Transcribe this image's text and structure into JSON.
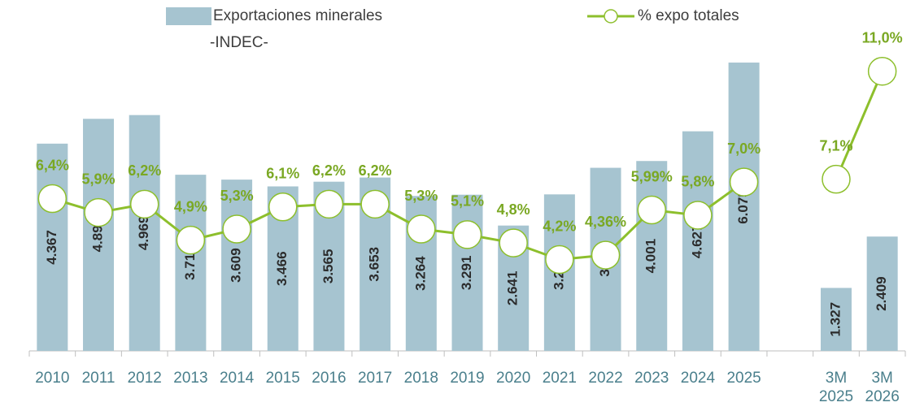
{
  "chart_data": {
    "type": "bar",
    "subtitle": "-INDEC-",
    "categories": [
      "2010",
      "2011",
      "2012",
      "2013",
      "2014",
      "2015",
      "2016",
      "2017",
      "2018",
      "2019",
      "2020",
      "2021",
      "2022",
      "2023",
      "2024",
      "2025",
      null,
      "3M 2025",
      "3M 2026"
    ],
    "series": [
      {
        "name": "Exportaciones minerales",
        "type": "bar",
        "color": "#a6c4d0",
        "values": [
          4367,
          4890,
          4969,
          3712,
          3609,
          3466,
          3565,
          3653,
          3264,
          3291,
          2641,
          3298,
          3858,
          4001,
          4627,
          6075,
          null,
          1327,
          2409
        ],
        "value_labels": [
          "4.367",
          "4.890",
          "4.969",
          "3.712",
          "3.609",
          "3.466",
          "3.565",
          "3.653",
          "3.264",
          "3.291",
          "2.641",
          "3.298",
          "3.858",
          "4.001",
          "4.627",
          "6.075",
          null,
          "1.327",
          "2.409"
        ]
      },
      {
        "name": "% expo totales",
        "type": "line",
        "axis": "y2",
        "color": "#8dbf2c",
        "values": [
          6.4,
          5.9,
          6.2,
          4.9,
          5.3,
          6.1,
          6.2,
          6.2,
          5.3,
          5.1,
          4.8,
          4.2,
          4.36,
          5.99,
          5.8,
          7.0,
          null,
          7.1,
          11.0
        ],
        "value_labels": [
          "6,4%",
          "5,9%",
          "6,2%",
          "4,9%",
          "5,3%",
          "6,1%",
          "6,2%",
          "6,2%",
          "5,3%",
          "5,1%",
          "4,8%",
          "4,2%",
          "4,36%",
          "5,99%",
          "5,8%",
          "7,0%",
          null,
          "7,1%",
          "11,0%"
        ]
      }
    ],
    "ylim": [
      0,
      7000
    ],
    "y2lim": [
      0.9,
      12.9
    ]
  }
}
